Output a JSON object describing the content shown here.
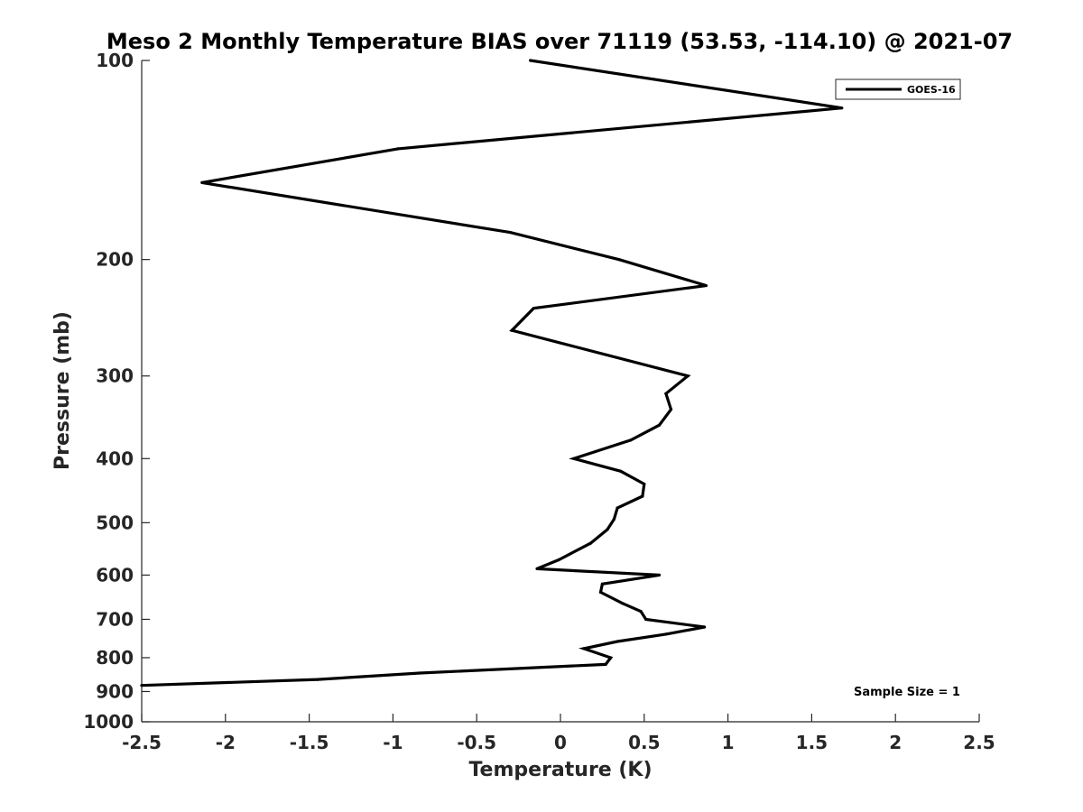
{
  "chart_data": {
    "type": "line",
    "title": "Meso 2 Monthly Temperature BIAS over 71119 (53.53, -114.10) @ 2021-07",
    "xlabel": "Temperature (K)",
    "ylabel": "Pressure (mb)",
    "xlim": [
      -2.5,
      2.5
    ],
    "ylim": [
      1000,
      100
    ],
    "yscale": "log",
    "y_reversed": true,
    "xticks": [
      -2.5,
      -2,
      -1.5,
      -1,
      -0.5,
      0,
      0.5,
      1,
      1.5,
      2,
      2.5
    ],
    "xtick_labels": [
      "-2.5",
      "-2",
      "-1.5",
      "-1",
      "-0.5",
      "0",
      "0.5",
      "1",
      "1.5",
      "2",
      "2.5"
    ],
    "yticks": [
      100,
      200,
      300,
      400,
      500,
      600,
      700,
      800,
      900,
      1000
    ],
    "ytick_labels": [
      "100",
      "200",
      "300",
      "400",
      "500",
      "600",
      "700",
      "800",
      "900",
      "1000"
    ],
    "grid": false,
    "legend_position": "top-right",
    "series": [
      {
        "name": "GOES-16",
        "color": "#000000",
        "points": [
          {
            "temp": -0.18,
            "pressure": 100
          },
          {
            "temp": 1.68,
            "pressure": 118
          },
          {
            "temp": -0.97,
            "pressure": 136
          },
          {
            "temp": -2.14,
            "pressure": 153
          },
          {
            "temp": -0.3,
            "pressure": 182
          },
          {
            "temp": 0.35,
            "pressure": 200
          },
          {
            "temp": 0.87,
            "pressure": 219
          },
          {
            "temp": -0.16,
            "pressure": 237
          },
          {
            "temp": -0.29,
            "pressure": 256
          },
          {
            "temp": 0.76,
            "pressure": 300
          },
          {
            "temp": 0.63,
            "pressure": 319
          },
          {
            "temp": 0.66,
            "pressure": 337
          },
          {
            "temp": 0.59,
            "pressure": 356
          },
          {
            "temp": 0.42,
            "pressure": 375
          },
          {
            "temp": 0.08,
            "pressure": 400
          },
          {
            "temp": 0.36,
            "pressure": 418
          },
          {
            "temp": 0.5,
            "pressure": 437
          },
          {
            "temp": 0.49,
            "pressure": 456
          },
          {
            "temp": 0.34,
            "pressure": 475
          },
          {
            "temp": 0.32,
            "pressure": 494
          },
          {
            "temp": 0.28,
            "pressure": 512
          },
          {
            "temp": 0.18,
            "pressure": 537
          },
          {
            "temp": -0.01,
            "pressure": 569
          },
          {
            "temp": -0.14,
            "pressure": 587
          },
          {
            "temp": 0.59,
            "pressure": 600
          },
          {
            "temp": 0.25,
            "pressure": 619
          },
          {
            "temp": 0.24,
            "pressure": 637
          },
          {
            "temp": 0.37,
            "pressure": 662
          },
          {
            "temp": 0.48,
            "pressure": 681
          },
          {
            "temp": 0.51,
            "pressure": 700
          },
          {
            "temp": 0.86,
            "pressure": 719
          },
          {
            "temp": 0.63,
            "pressure": 737
          },
          {
            "temp": 0.34,
            "pressure": 756
          },
          {
            "temp": 0.14,
            "pressure": 775
          },
          {
            "temp": 0.3,
            "pressure": 800
          },
          {
            "temp": 0.27,
            "pressure": 819
          },
          {
            "temp": -0.84,
            "pressure": 844
          },
          {
            "temp": -1.45,
            "pressure": 863
          },
          {
            "temp": -2.5,
            "pressure": 881
          }
        ]
      }
    ],
    "annotations": [
      "Sample Size = 1"
    ]
  }
}
